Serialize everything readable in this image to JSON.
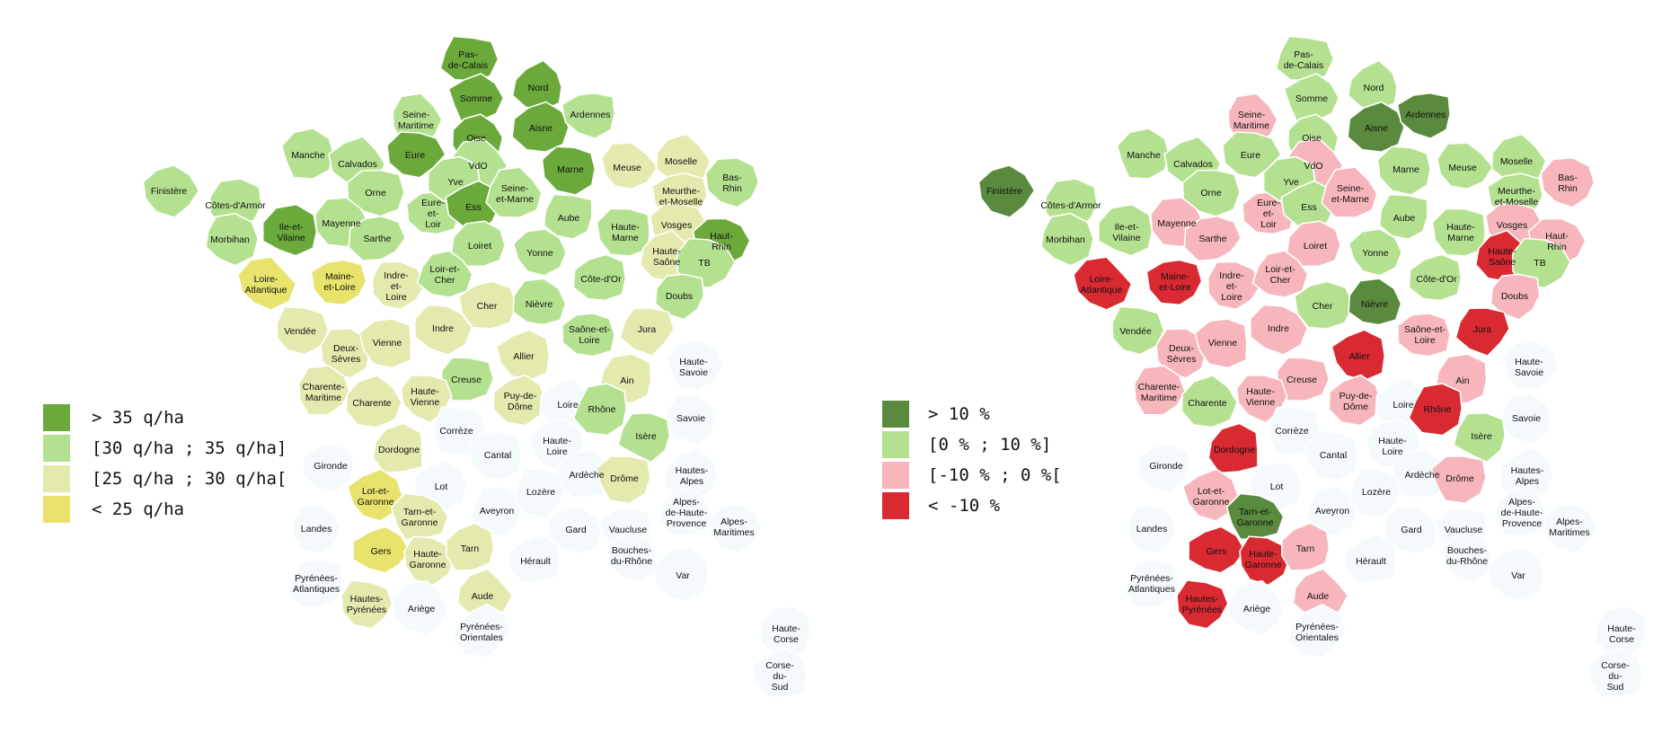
{
  "colors": {
    "gt35": "#6aa93a",
    "r30_35": "#b4e190",
    "r25_30": "#e4e9ae",
    "lt25": "#e8e36c",
    "none": "#f4f9fc",
    "gt10": "#5a8a3e",
    "r0_10": "#b4e190",
    "rm10_0": "#f7b6bc",
    "ltm10": "#d92a32"
  },
  "legend_left": [
    {
      "label": "> 35 q/ha",
      "color": "#6aa93a"
    },
    {
      "label": "[30 q/ha ; 35 q/ha]",
      "color": "#b4e190"
    },
    {
      "label": "[25 q/ha ; 30 q/ha[",
      "color": "#e4e9ae"
    },
    {
      "label": "< 25 q/ha",
      "color": "#e8e36c"
    }
  ],
  "legend_right": [
    {
      "label": "> 10 %",
      "color": "#5a8a3e"
    },
    {
      "label": "[0 % ; 10 %]",
      "color": "#b4e190"
    },
    {
      "label": "[-10 % ; 0 %[",
      "color": "#f7b6bc"
    },
    {
      "label": "< -10 %",
      "color": "#d92a32"
    }
  ],
  "departments": [
    {
      "id": "pdc",
      "label": [
        "Pas-",
        "de-Calais"
      ],
      "l": "gt35",
      "r": "r0_10"
    },
    {
      "id": "nord",
      "label": [
        "Nord"
      ],
      "l": "gt35",
      "r": "r0_10"
    },
    {
      "id": "somme",
      "label": [
        "Somme"
      ],
      "l": "gt35",
      "r": "r0_10"
    },
    {
      "id": "smar",
      "label": [
        "Seine-",
        "Maritime"
      ],
      "l": "r30_35",
      "r": "rm10_0"
    },
    {
      "id": "oise",
      "label": [
        "Oise"
      ],
      "l": "gt35",
      "r": "r0_10"
    },
    {
      "id": "aisne",
      "label": [
        "Aisne"
      ],
      "l": "gt35",
      "r": "gt10"
    },
    {
      "id": "ard",
      "label": [
        "Ardennes"
      ],
      "l": "r30_35",
      "r": "gt10"
    },
    {
      "id": "manche",
      "label": [
        "Manche"
      ],
      "l": "r30_35",
      "r": "r0_10"
    },
    {
      "id": "calv",
      "label": [
        "Calvados"
      ],
      "l": "r30_35",
      "r": "r0_10"
    },
    {
      "id": "eure",
      "label": [
        "Eure"
      ],
      "l": "gt35",
      "r": "r0_10"
    },
    {
      "id": "vdo",
      "label": [
        "VdO"
      ],
      "l": "r30_35",
      "r": "rm10_0"
    },
    {
      "id": "marne",
      "label": [
        "Marne"
      ],
      "l": "gt35",
      "r": "r0_10"
    },
    {
      "id": "meuse",
      "label": [
        "Meuse"
      ],
      "l": "r25_30",
      "r": "r0_10"
    },
    {
      "id": "moselle",
      "label": [
        "Moselle"
      ],
      "l": "r25_30",
      "r": "r0_10"
    },
    {
      "id": "basrhin",
      "label": [
        "Bas-",
        "Rhin"
      ],
      "l": "r30_35",
      "r": "rm10_0"
    },
    {
      "id": "fin",
      "label": [
        "Finistère"
      ],
      "l": "r30_35",
      "r": "gt10"
    },
    {
      "id": "cda",
      "label": [
        "Côtes-d'Armor"
      ],
      "l": "r30_35",
      "r": "r0_10"
    },
    {
      "id": "morb",
      "label": [
        "Morbihan"
      ],
      "l": "r30_35",
      "r": "r0_10"
    },
    {
      "id": "iev",
      "label": [
        "Ile-et-",
        "Vilaine"
      ],
      "l": "gt35",
      "r": "r0_10"
    },
    {
      "id": "orne",
      "label": [
        "Orne"
      ],
      "l": "r30_35",
      "r": "r0_10"
    },
    {
      "id": "may",
      "label": [
        "Mayenne"
      ],
      "l": "r30_35",
      "r": "rm10_0"
    },
    {
      "id": "sarthe",
      "label": [
        "Sarthe"
      ],
      "l": "r30_35",
      "r": "rm10_0"
    },
    {
      "id": "eel",
      "label": [
        "Eure-",
        "et-",
        "Loir"
      ],
      "l": "r30_35",
      "r": "rm10_0"
    },
    {
      "id": "yve",
      "label": [
        "Yve"
      ],
      "l": "r30_35",
      "r": "r0_10"
    },
    {
      "id": "ess",
      "label": [
        "Ess"
      ],
      "l": "gt35",
      "r": "r0_10"
    },
    {
      "id": "sem",
      "label": [
        "Seine-",
        "et-Marne"
      ],
      "l": "r30_35",
      "r": "rm10_0"
    },
    {
      "id": "aube",
      "label": [
        "Aube"
      ],
      "l": "r30_35",
      "r": "r0_10"
    },
    {
      "id": "hmarne",
      "label": [
        "Haute-",
        "Marne"
      ],
      "l": "r30_35",
      "r": "r0_10"
    },
    {
      "id": "mm",
      "label": [
        "Meurthe-",
        "et-Moselle"
      ],
      "l": "r25_30",
      "r": "r0_10"
    },
    {
      "id": "vosges",
      "label": [
        "Vosges"
      ],
      "l": "r25_30",
      "r": "rm10_0"
    },
    {
      "id": "hrhin",
      "label": [
        "Haut-",
        "Rhin"
      ],
      "l": "gt35",
      "r": "rm10_0"
    },
    {
      "id": "loiret",
      "label": [
        "Loiret"
      ],
      "l": "r30_35",
      "r": "rm10_0"
    },
    {
      "id": "yonne",
      "label": [
        "Yonne"
      ],
      "l": "r30_35",
      "r": "r0_10"
    },
    {
      "id": "cdo",
      "label": [
        "Côte-d'Or"
      ],
      "l": "r30_35",
      "r": "r0_10"
    },
    {
      "id": "hsaone",
      "label": [
        "Haute-",
        "Saône"
      ],
      "l": "r25_30",
      "r": "ltm10"
    },
    {
      "id": "tb",
      "label": [
        "TB"
      ],
      "l": "r30_35",
      "r": "r0_10"
    },
    {
      "id": "la",
      "label": [
        "Loire-",
        "Atlantique"
      ],
      "l": "lt25",
      "r": "ltm10"
    },
    {
      "id": "mel",
      "label": [
        "Maine-",
        "et-Loire"
      ],
      "l": "lt25",
      "r": "ltm10"
    },
    {
      "id": "iel",
      "label": [
        "Indre-",
        "et-",
        "Loire"
      ],
      "l": "r25_30",
      "r": "rm10_0"
    },
    {
      "id": "lec",
      "label": [
        "Loir-et-",
        "Cher"
      ],
      "l": "r30_35",
      "r": "rm10_0"
    },
    {
      "id": "cher",
      "label": [
        "Cher"
      ],
      "l": "r25_30",
      "r": "r0_10"
    },
    {
      "id": "nievre",
      "label": [
        "Nièvre"
      ],
      "l": "r30_35",
      "r": "gt10"
    },
    {
      "id": "doubs",
      "label": [
        "Doubs"
      ],
      "l": "r30_35",
      "r": "rm10_0"
    },
    {
      "id": "vendee",
      "label": [
        "Vendée"
      ],
      "l": "r25_30",
      "r": "r0_10"
    },
    {
      "id": "indre",
      "label": [
        "Indre"
      ],
      "l": "r25_30",
      "r": "rm10_0"
    },
    {
      "id": "sel",
      "label": [
        "Saône-et-",
        "Loire"
      ],
      "l": "r30_35",
      "r": "rm10_0"
    },
    {
      "id": "jura",
      "label": [
        "Jura"
      ],
      "l": "r25_30",
      "r": "ltm10"
    },
    {
      "id": "ds",
      "label": [
        "Deux-",
        "Sèvres"
      ],
      "l": "r25_30",
      "r": "rm10_0"
    },
    {
      "id": "vienne",
      "label": [
        "Vienne"
      ],
      "l": "r25_30",
      "r": "rm10_0"
    },
    {
      "id": "allier",
      "label": [
        "Allier"
      ],
      "l": "r25_30",
      "r": "ltm10"
    },
    {
      "id": "ain",
      "label": [
        "Ain"
      ],
      "l": "r25_30",
      "r": "rm10_0"
    },
    {
      "id": "hsav",
      "label": [
        "Haute-",
        "Savoie"
      ],
      "l": "none",
      "r": "none"
    },
    {
      "id": "creuse",
      "label": [
        "Creuse"
      ],
      "l": "r30_35",
      "r": "rm10_0"
    },
    {
      "id": "cm",
      "label": [
        "Charente-",
        "Maritime"
      ],
      "l": "r25_30",
      "r": "rm10_0"
    },
    {
      "id": "charente",
      "label": [
        "Charente"
      ],
      "l": "r25_30",
      "r": "r0_10"
    },
    {
      "id": "hv",
      "label": [
        "Haute-",
        "Vienne"
      ],
      "l": "r25_30",
      "r": "rm10_0"
    },
    {
      "id": "pdd",
      "label": [
        "Puy-de-",
        "Dôme"
      ],
      "l": "r25_30",
      "r": "rm10_0"
    },
    {
      "id": "loire",
      "label": [
        "Loire"
      ],
      "l": "none",
      "r": "none"
    },
    {
      "id": "rhone",
      "label": [
        "Rhône"
      ],
      "l": "r30_35",
      "r": "ltm10"
    },
    {
      "id": "savoie",
      "label": [
        "Savoie"
      ],
      "l": "none",
      "r": "none"
    },
    {
      "id": "isere",
      "label": [
        "Isère"
      ],
      "l": "r30_35",
      "r": "r0_10"
    },
    {
      "id": "correze",
      "label": [
        "Corrèze"
      ],
      "l": "none",
      "r": "none"
    },
    {
      "id": "dordogne",
      "label": [
        "Dordogne"
      ],
      "l": "r25_30",
      "r": "ltm10"
    },
    {
      "id": "gironde",
      "label": [
        "Gironde"
      ],
      "l": "none",
      "r": "none"
    },
    {
      "id": "cantal",
      "label": [
        "Cantal"
      ],
      "l": "none",
      "r": "none"
    },
    {
      "id": "hloire",
      "label": [
        "Haute-",
        "Loire"
      ],
      "l": "none",
      "r": "none"
    },
    {
      "id": "ardeche",
      "label": [
        "Ardèche"
      ],
      "l": "none",
      "r": "none"
    },
    {
      "id": "drome",
      "label": [
        "Drôme"
      ],
      "l": "r25_30",
      "r": "rm10_0"
    },
    {
      "id": "halpes",
      "label": [
        "Hautes-",
        "Alpes"
      ],
      "l": "none",
      "r": "none"
    },
    {
      "id": "lot",
      "label": [
        "Lot"
      ],
      "l": "none",
      "r": "none"
    },
    {
      "id": "lotg",
      "label": [
        "Lot-et-",
        "Garonne"
      ],
      "l": "lt25",
      "r": "rm10_0"
    },
    {
      "id": "aveyron",
      "label": [
        "Aveyron"
      ],
      "l": "none",
      "r": "none"
    },
    {
      "id": "lozere",
      "label": [
        "Lozère"
      ],
      "l": "none",
      "r": "none"
    },
    {
      "id": "ahp",
      "label": [
        "Alpes-",
        "de-Haute-",
        "Provence"
      ],
      "l": "none",
      "r": "none"
    },
    {
      "id": "am",
      "label": [
        "Alpes-",
        "Maritimes"
      ],
      "l": "none",
      "r": "none"
    },
    {
      "id": "landes",
      "label": [
        "Landes"
      ],
      "l": "none",
      "r": "none"
    },
    {
      "id": "teg",
      "label": [
        "Tarn-et-",
        "Garonne"
      ],
      "l": "r25_30",
      "r": "gt10"
    },
    {
      "id": "gard",
      "label": [
        "Gard"
      ],
      "l": "none",
      "r": "none"
    },
    {
      "id": "vaucluse",
      "label": [
        "Vaucluse"
      ],
      "l": "none",
      "r": "none"
    },
    {
      "id": "gers",
      "label": [
        "Gers"
      ],
      "l": "lt25",
      "r": "ltm10"
    },
    {
      "id": "hgar",
      "label": [
        "Haute-",
        "Garonne"
      ],
      "l": "r25_30",
      "r": "ltm10"
    },
    {
      "id": "tarn",
      "label": [
        "Tarn"
      ],
      "l": "r25_30",
      "r": "rm10_0"
    },
    {
      "id": "herault",
      "label": [
        "Hérault"
      ],
      "l": "none",
      "r": "none"
    },
    {
      "id": "bdr",
      "label": [
        "Bouches-",
        "du-Rhône"
      ],
      "l": "none",
      "r": "none"
    },
    {
      "id": "var",
      "label": [
        "Var"
      ],
      "l": "none",
      "r": "none"
    },
    {
      "id": "pa",
      "label": [
        "Pyrénées-",
        "Atlantiques"
      ],
      "l": "none",
      "r": "none"
    },
    {
      "id": "hp",
      "label": [
        "Hautes-",
        "Pyrénées"
      ],
      "l": "r25_30",
      "r": "ltm10"
    },
    {
      "id": "ariege",
      "label": [
        "Ariège"
      ],
      "l": "none",
      "r": "none"
    },
    {
      "id": "aude",
      "label": [
        "Aude"
      ],
      "l": "r25_30",
      "r": "rm10_0"
    },
    {
      "id": "po",
      "label": [
        "Pyrénées-",
        "Orientales"
      ],
      "l": "none",
      "r": "none"
    },
    {
      "id": "hcorse",
      "label": [
        "Haute-",
        "Corse"
      ],
      "l": "none",
      "r": "none"
    },
    {
      "id": "csud",
      "label": [
        "Corse-",
        "du-",
        "Sud"
      ],
      "l": "none",
      "r": "none"
    }
  ]
}
